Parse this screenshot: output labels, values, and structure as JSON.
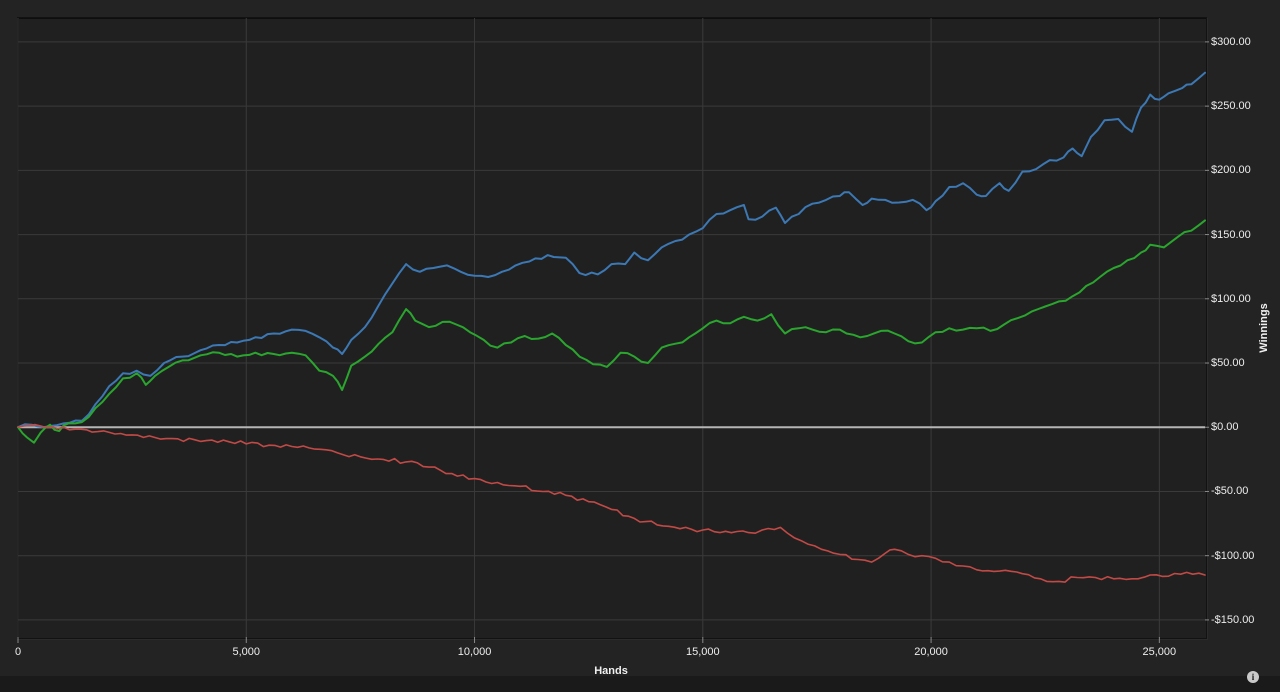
{
  "chart_data": {
    "type": "line",
    "title": "",
    "xlabel": "Hands",
    "ylabel": "Winnings",
    "xlim": [
      0,
      26000
    ],
    "ylim": [
      -163.3,
      318.6
    ],
    "grid": true,
    "legend": "none",
    "zero_line_value": 0,
    "x_ticks": [
      {
        "value": 0,
        "label": "0"
      },
      {
        "value": 5000,
        "label": "5,000"
      },
      {
        "value": 10000,
        "label": "10,000"
      },
      {
        "value": 15000,
        "label": "15,000"
      },
      {
        "value": 20000,
        "label": "20,000"
      },
      {
        "value": 25000,
        "label": "25,000"
      }
    ],
    "y_ticks": [
      {
        "value": 300,
        "label": "$300.00"
      },
      {
        "value": 250,
        "label": "$250.00"
      },
      {
        "value": 200,
        "label": "$200.00"
      },
      {
        "value": 150,
        "label": "$150.00"
      },
      {
        "value": 100,
        "label": "$100.00"
      },
      {
        "value": 50,
        "label": "$50.00"
      },
      {
        "value": 0,
        "label": "$0.00"
      },
      {
        "value": -50,
        "label": "-$50.00"
      },
      {
        "value": -100,
        "label": "-$100.00"
      },
      {
        "value": -150,
        "label": "-$150.00"
      }
    ],
    "series": [
      {
        "name": "blue-winnings-line",
        "color": "#3c78b4",
        "width": 2,
        "points": [
          [
            0,
            0
          ],
          [
            300,
            2
          ],
          [
            700,
            1
          ],
          [
            1000,
            3
          ],
          [
            1400,
            5
          ],
          [
            1700,
            18
          ],
          [
            2000,
            32
          ],
          [
            2300,
            42
          ],
          [
            2600,
            44
          ],
          [
            2900,
            40
          ],
          [
            3200,
            50
          ],
          [
            3600,
            55
          ],
          [
            4000,
            60
          ],
          [
            4400,
            64
          ],
          [
            4800,
            66
          ],
          [
            5200,
            70
          ],
          [
            5600,
            73
          ],
          [
            6000,
            76
          ],
          [
            6300,
            75
          ],
          [
            6600,
            70
          ],
          [
            6900,
            62
          ],
          [
            7100,
            57
          ],
          [
            7300,
            68
          ],
          [
            7600,
            78
          ],
          [
            7900,
            95
          ],
          [
            8200,
            112
          ],
          [
            8500,
            127
          ],
          [
            8800,
            121
          ],
          [
            9100,
            124
          ],
          [
            9400,
            126
          ],
          [
            9700,
            121
          ],
          [
            10000,
            118
          ],
          [
            10300,
            117
          ],
          [
            10600,
            121
          ],
          [
            10900,
            126
          ],
          [
            11200,
            129
          ],
          [
            11600,
            134
          ],
          [
            12000,
            132
          ],
          [
            12300,
            120
          ],
          [
            12700,
            119
          ],
          [
            13000,
            127
          ],
          [
            13300,
            127
          ],
          [
            13500,
            136
          ],
          [
            13800,
            130
          ],
          [
            14100,
            140
          ],
          [
            14400,
            145
          ],
          [
            14700,
            150
          ],
          [
            15000,
            155
          ],
          [
            15300,
            166
          ],
          [
            15600,
            169
          ],
          [
            15900,
            173
          ],
          [
            16000,
            162
          ],
          [
            16300,
            164
          ],
          [
            16600,
            171
          ],
          [
            16800,
            159
          ],
          [
            17100,
            166
          ],
          [
            17400,
            174
          ],
          [
            17700,
            177
          ],
          [
            18000,
            180
          ],
          [
            18200,
            183
          ],
          [
            18500,
            173
          ],
          [
            18700,
            178
          ],
          [
            19000,
            177
          ],
          [
            19300,
            175
          ],
          [
            19600,
            177
          ],
          [
            19900,
            169
          ],
          [
            20100,
            176
          ],
          [
            20400,
            187
          ],
          [
            20700,
            190
          ],
          [
            21000,
            181
          ],
          [
            21200,
            180
          ],
          [
            21500,
            190
          ],
          [
            21700,
            184
          ],
          [
            22000,
            199
          ],
          [
            22300,
            201
          ],
          [
            22600,
            208
          ],
          [
            22900,
            210
          ],
          [
            23100,
            217
          ],
          [
            23300,
            211
          ],
          [
            23500,
            226
          ],
          [
            23800,
            239
          ],
          [
            24100,
            240
          ],
          [
            24400,
            230
          ],
          [
            24600,
            249
          ],
          [
            24800,
            259
          ],
          [
            25000,
            255
          ],
          [
            25200,
            260
          ],
          [
            25500,
            264
          ],
          [
            25700,
            267
          ],
          [
            26000,
            276
          ]
        ]
      },
      {
        "name": "green-winnings-line",
        "color": "#2aa52e",
        "width": 2,
        "points": [
          [
            0,
            0
          ],
          [
            200,
            -8
          ],
          [
            350,
            -12
          ],
          [
            500,
            -4
          ],
          [
            700,
            2
          ],
          [
            900,
            -3
          ],
          [
            1100,
            3
          ],
          [
            1400,
            4
          ],
          [
            1700,
            15
          ],
          [
            2000,
            26
          ],
          [
            2300,
            38
          ],
          [
            2600,
            42
          ],
          [
            2800,
            33
          ],
          [
            3000,
            40
          ],
          [
            3300,
            47
          ],
          [
            3600,
            52
          ],
          [
            4000,
            56
          ],
          [
            4400,
            58
          ],
          [
            4800,
            55
          ],
          [
            5200,
            58
          ],
          [
            5600,
            57
          ],
          [
            6000,
            58
          ],
          [
            6300,
            56
          ],
          [
            6600,
            44
          ],
          [
            6900,
            40
          ],
          [
            7100,
            29
          ],
          [
            7300,
            48
          ],
          [
            7600,
            55
          ],
          [
            7900,
            65
          ],
          [
            8200,
            74
          ],
          [
            8500,
            92
          ],
          [
            8700,
            83
          ],
          [
            9000,
            78
          ],
          [
            9300,
            82
          ],
          [
            9600,
            80
          ],
          [
            9900,
            74
          ],
          [
            10200,
            68
          ],
          [
            10500,
            62
          ],
          [
            10800,
            66
          ],
          [
            11100,
            71
          ],
          [
            11400,
            69
          ],
          [
            11700,
            73
          ],
          [
            12000,
            64
          ],
          [
            12300,
            55
          ],
          [
            12600,
            49
          ],
          [
            12900,
            47
          ],
          [
            13200,
            58
          ],
          [
            13500,
            55
          ],
          [
            13800,
            50
          ],
          [
            14100,
            62
          ],
          [
            14400,
            65
          ],
          [
            14700,
            70
          ],
          [
            15000,
            77
          ],
          [
            15300,
            83
          ],
          [
            15600,
            81
          ],
          [
            15900,
            86
          ],
          [
            16200,
            83
          ],
          [
            16500,
            88
          ],
          [
            16800,
            73
          ],
          [
            17100,
            77
          ],
          [
            17400,
            76
          ],
          [
            17700,
            74
          ],
          [
            18000,
            76
          ],
          [
            18300,
            72
          ],
          [
            18600,
            71
          ],
          [
            18900,
            75
          ],
          [
            19200,
            73
          ],
          [
            19500,
            67
          ],
          [
            19800,
            66
          ],
          [
            20100,
            74
          ],
          [
            20400,
            77
          ],
          [
            20700,
            76
          ],
          [
            21000,
            77
          ],
          [
            21300,
            75
          ],
          [
            21600,
            80
          ],
          [
            21900,
            85
          ],
          [
            22200,
            90
          ],
          [
            22500,
            94
          ],
          [
            22800,
            98
          ],
          [
            23100,
            102
          ],
          [
            23400,
            110
          ],
          [
            23700,
            117
          ],
          [
            24000,
            124
          ],
          [
            24300,
            130
          ],
          [
            24600,
            136
          ],
          [
            24800,
            142
          ],
          [
            25100,
            140
          ],
          [
            25400,
            148
          ],
          [
            25700,
            153
          ],
          [
            26000,
            161
          ]
        ]
      },
      {
        "name": "red-winnings-line",
        "color": "#c14a46",
        "width": 1.6,
        "points": [
          [
            0,
            0
          ],
          [
            500,
            1
          ],
          [
            1000,
            0
          ],
          [
            1500,
            -2
          ],
          [
            2000,
            -4
          ],
          [
            2500,
            -6
          ],
          [
            3000,
            -8
          ],
          [
            3500,
            -9
          ],
          [
            4000,
            -11
          ],
          [
            4500,
            -10
          ],
          [
            5000,
            -13
          ],
          [
            5500,
            -14
          ],
          [
            6000,
            -15
          ],
          [
            6500,
            -17
          ],
          [
            7000,
            -20
          ],
          [
            7500,
            -23
          ],
          [
            8000,
            -25
          ],
          [
            8500,
            -27
          ],
          [
            9000,
            -31
          ],
          [
            9500,
            -36
          ],
          [
            10000,
            -40
          ],
          [
            10500,
            -43
          ],
          [
            11000,
            -46
          ],
          [
            11500,
            -50
          ],
          [
            12000,
            -53
          ],
          [
            12500,
            -58
          ],
          [
            13000,
            -64
          ],
          [
            13500,
            -71
          ],
          [
            14000,
            -76
          ],
          [
            14500,
            -79
          ],
          [
            15000,
            -80
          ],
          [
            15500,
            -81
          ],
          [
            16000,
            -82
          ],
          [
            16300,
            -80
          ],
          [
            16700,
            -78
          ],
          [
            17000,
            -86
          ],
          [
            17300,
            -91
          ],
          [
            17600,
            -95
          ],
          [
            18000,
            -99
          ],
          [
            18400,
            -103
          ],
          [
            18700,
            -105
          ],
          [
            19000,
            -98
          ],
          [
            19200,
            -95
          ],
          [
            19500,
            -99
          ],
          [
            19800,
            -100
          ],
          [
            20100,
            -102
          ],
          [
            20400,
            -105
          ],
          [
            20700,
            -108
          ],
          [
            21000,
            -111
          ],
          [
            21500,
            -112
          ],
          [
            22000,
            -114
          ],
          [
            22400,
            -118
          ],
          [
            22800,
            -120
          ],
          [
            23200,
            -117
          ],
          [
            23600,
            -117
          ],
          [
            24000,
            -118
          ],
          [
            24400,
            -118
          ],
          [
            24800,
            -115
          ],
          [
            25200,
            -116
          ],
          [
            25600,
            -113
          ],
          [
            26000,
            -115
          ]
        ]
      }
    ],
    "colors": {
      "background": "#232323",
      "plot_background": "#202020",
      "gridline": "#3a3a3a",
      "zero_line": "#b5b5b5",
      "tick_text": "#ededed"
    }
  },
  "statusbar": {
    "info_glyph": "i"
  }
}
